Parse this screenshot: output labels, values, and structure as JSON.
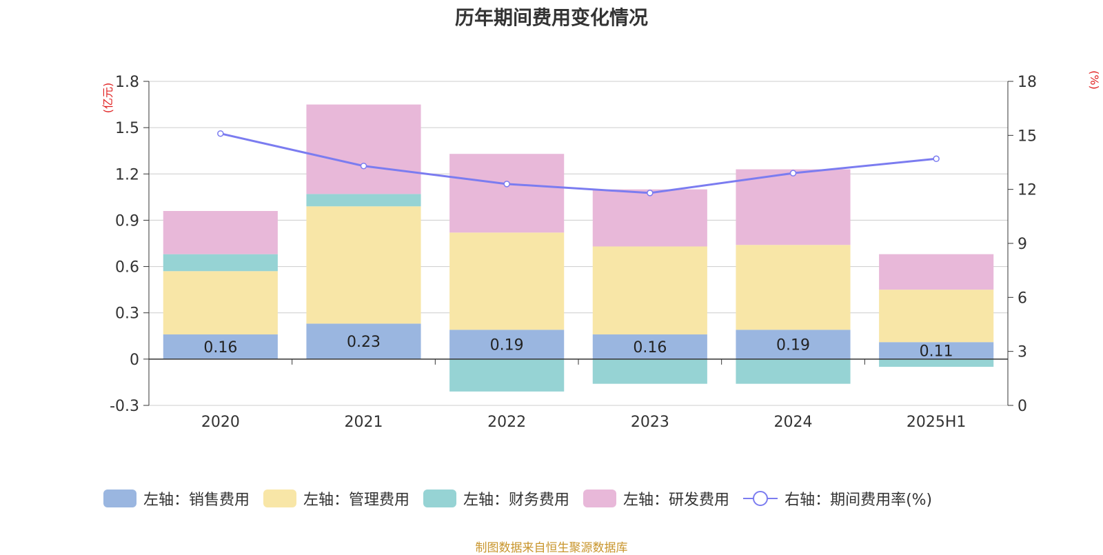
{
  "chart_data": {
    "type": "bar",
    "title": "历年期间费用变化情况",
    "categories": [
      "2020",
      "2021",
      "2022",
      "2023",
      "2024",
      "2025H1"
    ],
    "left_axis": {
      "unit_label": "(亿元)",
      "ylim": [
        -0.3,
        1.8
      ],
      "ticks": [
        "1.8",
        "1.5",
        "1.2",
        "0.9",
        "0.6",
        "0.3",
        "0",
        "-0.3"
      ]
    },
    "right_axis": {
      "unit_label": "(%)",
      "ylim": [
        0,
        18
      ],
      "ticks": [
        "18",
        "15",
        "12",
        "9",
        "6",
        "3",
        "0"
      ]
    },
    "series": [
      {
        "name": "左轴：销售费用",
        "type": "stacked-bar",
        "axis": "left",
        "color": "#9ab6e0",
        "values": [
          0.16,
          0.23,
          0.19,
          0.16,
          0.19,
          0.11
        ],
        "data_labels": [
          "0.16",
          "0.23",
          "0.19",
          "0.16",
          "0.19",
          "0.11"
        ]
      },
      {
        "name": "左轴：管理费用",
        "type": "stacked-bar",
        "axis": "left",
        "color": "#f8e6a7",
        "values": [
          0.41,
          0.76,
          0.63,
          0.57,
          0.55,
          0.34
        ]
      },
      {
        "name": "左轴：财务费用",
        "type": "stacked-bar",
        "axis": "left",
        "color": "#96d3d4",
        "values": [
          0.11,
          0.08,
          -0.21,
          -0.16,
          -0.16,
          -0.05
        ]
      },
      {
        "name": "左轴：研发费用",
        "type": "stacked-bar",
        "axis": "left",
        "color": "#e8b8d9",
        "values": [
          0.28,
          0.58,
          0.51,
          0.37,
          0.49,
          0.23
        ]
      },
      {
        "name": "右轴：期间费用率(%)",
        "type": "line",
        "axis": "right",
        "color": "#7b7cf0",
        "values": [
          15.1,
          13.3,
          12.3,
          11.8,
          12.9,
          13.7
        ]
      }
    ],
    "grid": true,
    "legend_position": "bottom"
  },
  "footer": {
    "source": "制图数据来自恒生聚源数据库"
  }
}
